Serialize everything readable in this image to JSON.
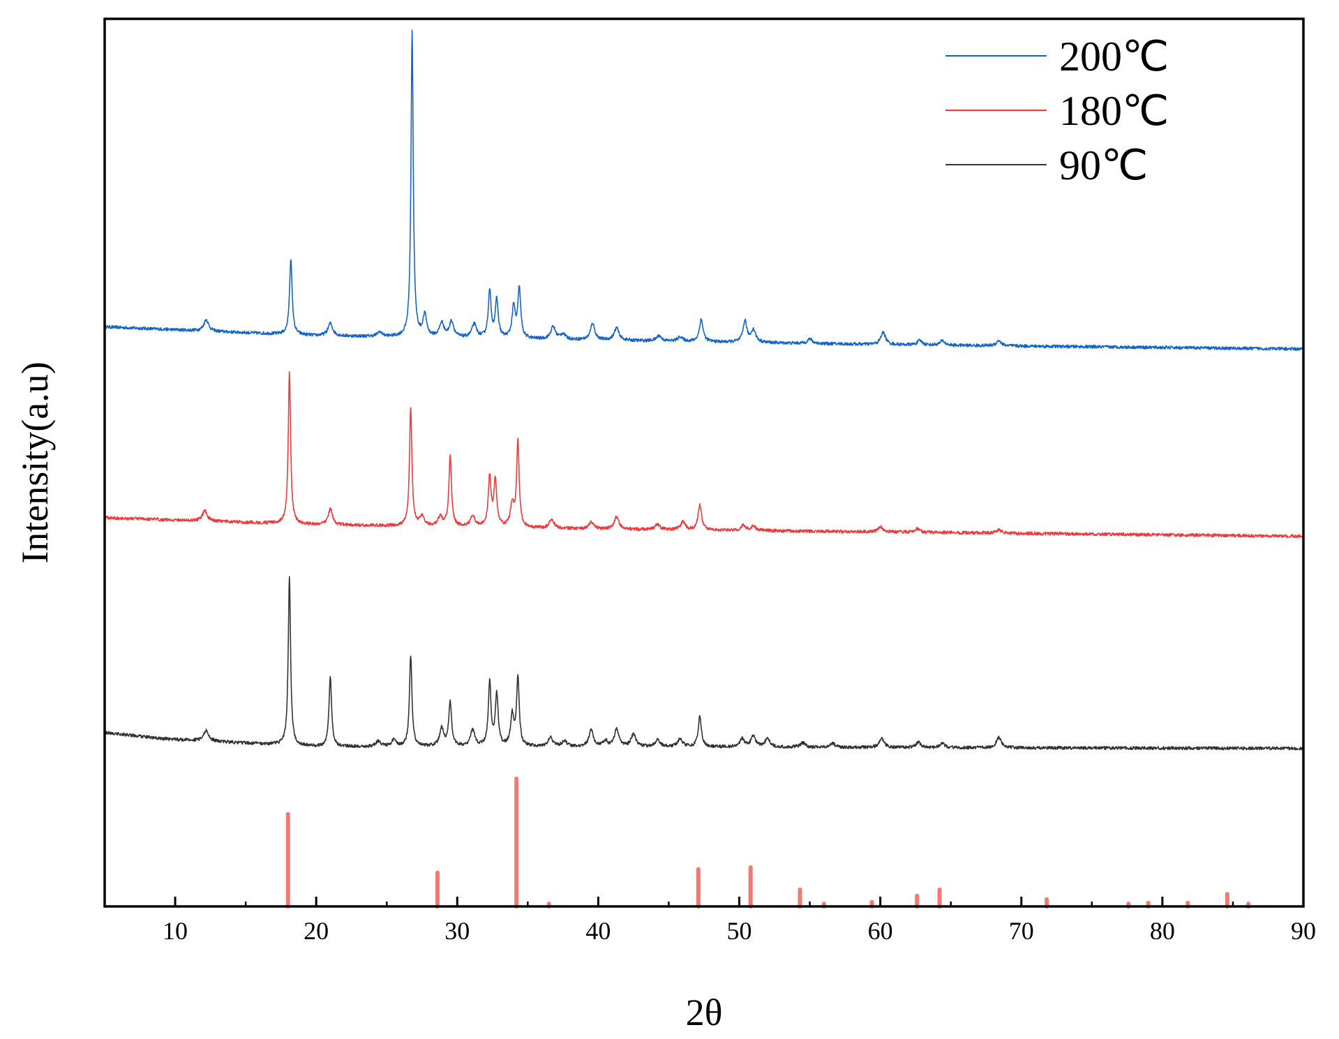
{
  "chart_data": {
    "type": "line",
    "title": "",
    "xlabel": "2θ",
    "ylabel": "Intensity(a.u)",
    "xlim": [
      5,
      90
    ],
    "ylim": [
      0,
      100
    ],
    "x_ticks": [
      10,
      20,
      30,
      40,
      50,
      60,
      70,
      80,
      90
    ],
    "x_tick_labels": [
      "10",
      "20",
      "30",
      "40",
      "50",
      "60",
      "70",
      "80",
      "90"
    ],
    "y_ticks_shown": false,
    "grid": false,
    "legend": {
      "placement": "top-right",
      "entries": [
        "200℃",
        "180℃",
        "90℃"
      ]
    },
    "series": [
      {
        "name": "200℃",
        "color": "#1565c8",
        "baseline": [
          [
            5,
            65.3
          ],
          [
            20,
            64.3
          ],
          [
            40,
            63.8
          ],
          [
            60,
            63.3
          ],
          [
            90,
            62.8
          ]
        ],
        "peaks": [
          [
            12.2,
            1.3
          ],
          [
            18.2,
            8.6
          ],
          [
            21.0,
            1.4
          ],
          [
            24.5,
            0.5
          ],
          [
            26.8,
            34.5
          ],
          [
            27.7,
            2.4
          ],
          [
            28.9,
            1.6
          ],
          [
            29.6,
            1.8
          ],
          [
            31.2,
            1.5
          ],
          [
            32.3,
            5.2
          ],
          [
            32.8,
            4.2
          ],
          [
            34.0,
            3.5
          ],
          [
            34.4,
            5.6
          ],
          [
            36.8,
            1.4
          ],
          [
            37.5,
            0.6
          ],
          [
            39.6,
            1.9
          ],
          [
            41.3,
            1.4
          ],
          [
            44.3,
            0.6
          ],
          [
            45.8,
            0.5
          ],
          [
            47.3,
            2.5
          ],
          [
            50.4,
            2.4
          ],
          [
            51.0,
            1.4
          ],
          [
            55.0,
            0.5
          ],
          [
            60.2,
            1.4
          ],
          [
            62.8,
            0.5
          ],
          [
            64.4,
            0.5
          ],
          [
            68.4,
            0.6
          ]
        ]
      },
      {
        "name": "180℃",
        "color": "#ee3a3c",
        "baseline": [
          [
            5,
            43.8
          ],
          [
            20,
            43.0
          ],
          [
            40,
            42.5
          ],
          [
            60,
            42.2
          ],
          [
            90,
            41.7
          ]
        ],
        "peaks": [
          [
            12.1,
            1.2
          ],
          [
            18.1,
            17.0
          ],
          [
            21.0,
            1.8
          ],
          [
            26.7,
            13.4
          ],
          [
            27.5,
            1.0
          ],
          [
            28.8,
            1.0
          ],
          [
            29.5,
            8.0
          ],
          [
            31.1,
            1.2
          ],
          [
            32.3,
            5.6
          ],
          [
            32.7,
            5.2
          ],
          [
            33.9,
            2.6
          ],
          [
            34.3,
            9.6
          ],
          [
            36.7,
            1.0
          ],
          [
            39.5,
            0.8
          ],
          [
            41.3,
            1.4
          ],
          [
            44.2,
            0.6
          ],
          [
            46.0,
            0.9
          ],
          [
            47.2,
            2.8
          ],
          [
            50.3,
            0.6
          ],
          [
            51.0,
            0.5
          ],
          [
            60.0,
            0.6
          ],
          [
            62.6,
            0.4
          ],
          [
            68.4,
            0.4
          ]
        ]
      },
      {
        "name": "90℃",
        "color": "#333333",
        "baseline": [
          [
            5,
            19.6
          ],
          [
            9,
            18.9
          ],
          [
            20,
            18.0
          ],
          [
            40,
            18.0
          ],
          [
            60,
            17.9
          ],
          [
            90,
            17.8
          ]
        ],
        "peaks": [
          [
            12.2,
            1.2
          ],
          [
            18.1,
            19.0
          ],
          [
            21.0,
            7.8
          ],
          [
            24.4,
            0.6
          ],
          [
            25.5,
            0.7
          ],
          [
            26.7,
            10.3
          ],
          [
            28.9,
            2.0
          ],
          [
            29.5,
            4.9
          ],
          [
            31.1,
            1.8
          ],
          [
            32.3,
            7.2
          ],
          [
            32.8,
            5.8
          ],
          [
            33.9,
            3.4
          ],
          [
            34.3,
            7.6
          ],
          [
            36.6,
            1.0
          ],
          [
            37.6,
            0.6
          ],
          [
            39.5,
            1.9
          ],
          [
            40.5,
            0.6
          ],
          [
            41.3,
            2.0
          ],
          [
            42.5,
            1.4
          ],
          [
            44.2,
            0.8
          ],
          [
            45.8,
            0.9
          ],
          [
            47.2,
            3.4
          ],
          [
            50.2,
            0.9
          ],
          [
            51.0,
            1.2
          ],
          [
            52.0,
            1.0
          ],
          [
            54.5,
            0.5
          ],
          [
            56.6,
            0.5
          ],
          [
            60.1,
            1.0
          ],
          [
            62.7,
            0.6
          ],
          [
            64.4,
            0.5
          ],
          [
            68.4,
            1.2
          ]
        ]
      },
      {
        "name": "",
        "type": "stick",
        "color": "#f07b72",
        "x": [
          18.0,
          28.6,
          34.2,
          36.5,
          47.1,
          50.8,
          54.3,
          56.0,
          59.4,
          62.6,
          64.2,
          71.8,
          77.6,
          79.0,
          81.8,
          84.6,
          86.1
        ],
        "values": [
          10.4,
          3.8,
          14.4,
          0.3,
          4.2,
          4.4,
          1.9,
          0.3,
          0.5,
          1.2,
          1.9,
          0.8,
          0.3,
          0.4,
          0.4,
          1.4,
          0.3
        ]
      }
    ]
  }
}
